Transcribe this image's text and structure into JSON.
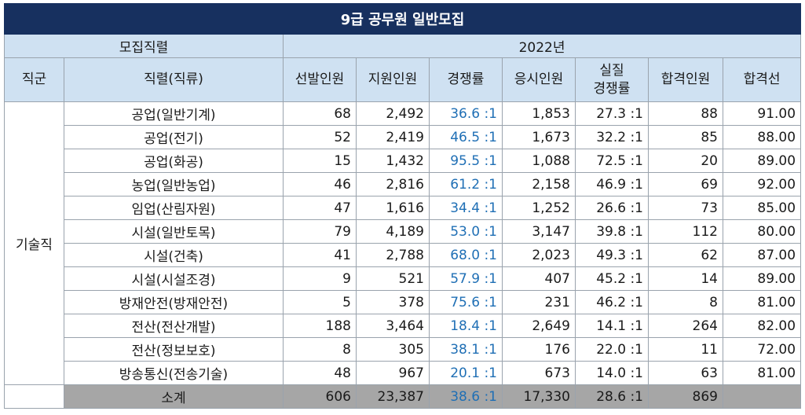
{
  "title": "9급 공무원 일반모집",
  "header": {
    "group_label": "모집직렬",
    "year_label": "2022년",
    "col_grade": "직군",
    "col_series": "직렬(직류)",
    "col_selected": "선발인원",
    "col_applicants": "지원인원",
    "col_competition": "경쟁률",
    "col_examinees": "응시인원",
    "col_actual_line1": "실질",
    "col_actual_line2": "경쟁률",
    "col_passed": "합격인원",
    "col_cutoff": "합격선"
  },
  "grade_name": "기술직",
  "rows": [
    {
      "series": "공업(일반기계)",
      "selected": "68",
      "applicants": "2,492",
      "competition": "36.6 :1",
      "examinees": "1,853",
      "actual": "27.3 :1",
      "passed": "88",
      "cutoff": "91.00"
    },
    {
      "series": "공업(전기)",
      "selected": "52",
      "applicants": "2,419",
      "competition": "46.5 :1",
      "examinees": "1,673",
      "actual": "32.2 :1",
      "passed": "85",
      "cutoff": "88.00"
    },
    {
      "series": "공업(화공)",
      "selected": "15",
      "applicants": "1,432",
      "competition": "95.5 :1",
      "examinees": "1,088",
      "actual": "72.5 :1",
      "passed": "20",
      "cutoff": "89.00"
    },
    {
      "series": "농업(일반농업)",
      "selected": "46",
      "applicants": "2,816",
      "competition": "61.2 :1",
      "examinees": "2,158",
      "actual": "46.9 :1",
      "passed": "69",
      "cutoff": "92.00"
    },
    {
      "series": "임업(산림자원)",
      "selected": "47",
      "applicants": "1,616",
      "competition": "34.4 :1",
      "examinees": "1,252",
      "actual": "26.6 :1",
      "passed": "73",
      "cutoff": "85.00"
    },
    {
      "series": "시설(일반토목)",
      "selected": "79",
      "applicants": "4,189",
      "competition": "53.0 :1",
      "examinees": "3,147",
      "actual": "39.8 :1",
      "passed": "112",
      "cutoff": "80.00"
    },
    {
      "series": "시설(건축)",
      "selected": "41",
      "applicants": "2,788",
      "competition": "68.0 :1",
      "examinees": "2,023",
      "actual": "49.3 :1",
      "passed": "62",
      "cutoff": "87.00"
    },
    {
      "series": "시설(시설조경)",
      "selected": "9",
      "applicants": "521",
      "competition": "57.9 :1",
      "examinees": "407",
      "actual": "45.2 :1",
      "passed": "14",
      "cutoff": "89.00"
    },
    {
      "series": "방재안전(방재안전)",
      "selected": "5",
      "applicants": "378",
      "competition": "75.6 :1",
      "examinees": "231",
      "actual": "46.2 :1",
      "passed": "8",
      "cutoff": "81.00"
    },
    {
      "series": "전산(전산개발)",
      "selected": "188",
      "applicants": "3,464",
      "competition": "18.4 :1",
      "examinees": "2,649",
      "actual": "14.1 :1",
      "passed": "264",
      "cutoff": "82.00"
    },
    {
      "series": "전산(정보보호)",
      "selected": "8",
      "applicants": "305",
      "competition": "38.1 :1",
      "examinees": "176",
      "actual": "22.0 :1",
      "passed": "11",
      "cutoff": "72.00"
    },
    {
      "series": "방송통신(전송기술)",
      "selected": "48",
      "applicants": "967",
      "competition": "20.1 :1",
      "examinees": "673",
      "actual": "14.0 :1",
      "passed": "63",
      "cutoff": "81.00"
    }
  ],
  "subtotal": {
    "label": "소계",
    "selected": "606",
    "applicants": "23,387",
    "competition": "38.6 :1",
    "examinees": "17,330",
    "actual": "28.6 :1",
    "passed": "869",
    "cutoff": ""
  },
  "colors": {
    "title_bg": "#17305f",
    "header_bg": "#cfe1f2",
    "ratio_text": "#1f6fb5",
    "subtotal_bg": "#a6a6a6"
  }
}
